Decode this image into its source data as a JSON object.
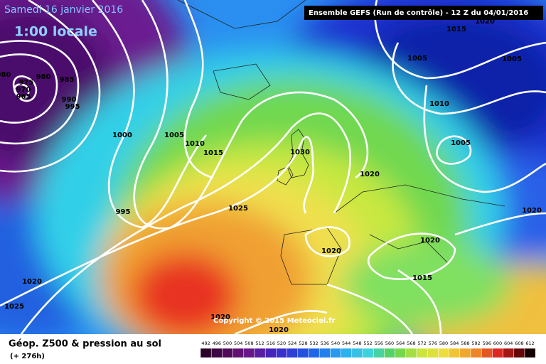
{
  "header": {
    "date": "Samedi 16 janvier 2016",
    "time": "1:00 locale",
    "run": "Ensemble GEFS  (Run de contrôle)  -  12 Z du 04/01/2016"
  },
  "isobar_labels": [
    "1015",
    "1020",
    "1005",
    "1005",
    "1010",
    "1005",
    "980",
    "975",
    "970",
    "965",
    "980",
    "985",
    "990",
    "995",
    "1000",
    "1005",
    "1010",
    "1015",
    "1030",
    "1020",
    "995",
    "1025",
    "1020",
    "1020",
    "1020",
    "1015",
    "1020",
    "1025",
    "1020",
    "1020"
  ],
  "copyright": "Copyright © 2015 Meteociel.fr",
  "footer": {
    "title": "Géop. Z500 & pression au sol",
    "lead": "(+ 276h)"
  },
  "legend_ticks": [
    492,
    496,
    500,
    504,
    508,
    512,
    516,
    520,
    524,
    528,
    532,
    536,
    540,
    544,
    548,
    552,
    556,
    560,
    564,
    568,
    572,
    576,
    580,
    584,
    588,
    592,
    596,
    600,
    604,
    608,
    612
  ]
}
